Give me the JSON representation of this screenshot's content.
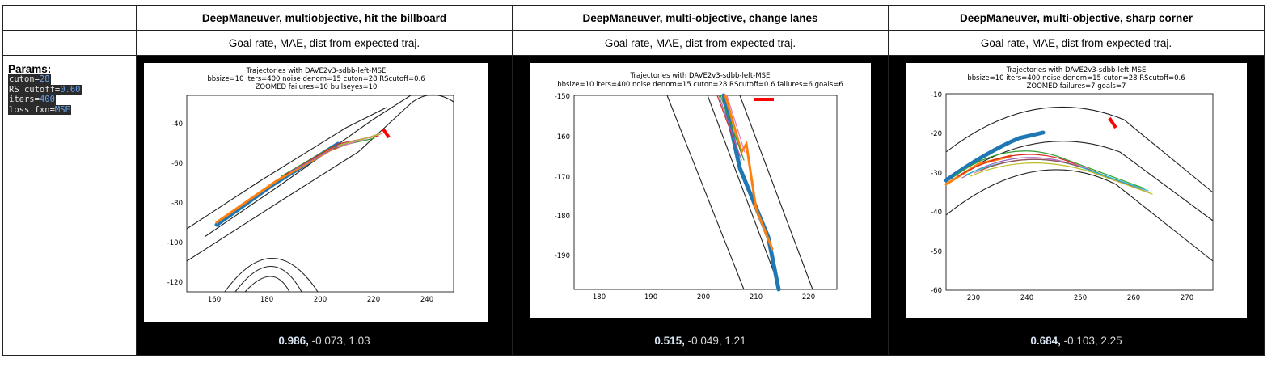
{
  "columns": [
    {
      "title": "DeepManeuver, multiobjective, hit the billboard",
      "subtitle": "Goal rate, MAE, dist from expected traj.",
      "plot": {
        "title1": "Trajectories with DAVE2v3-sdbb-left-MSE",
        "title2": "bbsize=10 iters=400 noise denom=15 cuton=28 RScutoff=0.6",
        "title3": "ZOOMED failures=10 bullseyes=10",
        "xticks": [
          "160",
          "180",
          "200",
          "220",
          "240"
        ],
        "yticks": [
          "-40",
          "-60",
          "-80",
          "-100",
          "-120"
        ]
      },
      "stat_bold": "0.986,",
      "stat_rest": " -0.073, 1.03"
    },
    {
      "title": "DeepManeuver, multi-objective, change lanes",
      "subtitle": "Goal rate, MAE, dist from expected traj.",
      "plot": {
        "title1": "Trajectories with DAVE2v3-sdbb-left-MSE",
        "title2": "bbsize=10 iters=400 noise denom=15 cuton=28 RScutoff=0.6 failures=6 goals=6",
        "title3": "",
        "xticks": [
          "180",
          "190",
          "200",
          "210",
          "220"
        ],
        "yticks": [
          "-150",
          "-160",
          "-170",
          "-180",
          "-190"
        ]
      },
      "stat_bold": "0.515,",
      "stat_rest": " -0.049, 1.21"
    },
    {
      "title": "DeepManeuver, multi-objective, sharp corner",
      "subtitle": "Goal rate, MAE, dist from expected traj.",
      "plot": {
        "title1": "Trajectories with DAVE2v3-sdbb-left-MSE",
        "title2": "bbsize=10 iters=400 noise denom=15 cuton=28 RScutoff=0.6",
        "title3": "ZOOMED failures=7 goals=7",
        "xticks": [
          "230",
          "240",
          "250",
          "260",
          "270"
        ],
        "yticks": [
          "-10",
          "-20",
          "-30",
          "-40",
          "-50",
          "-60"
        ]
      },
      "stat_bold": "0.684,",
      "stat_rest": " -0.103,  2.25"
    }
  ],
  "params": {
    "title": "Params:",
    "lines": [
      {
        "key": "cuton=",
        "val": "28"
      },
      {
        "key": "RS cutoff=",
        "val": "0.60"
      },
      {
        "key": "iters=",
        "val": "400"
      },
      {
        "key": "loss fxn=",
        "val": "MSE"
      }
    ]
  }
}
